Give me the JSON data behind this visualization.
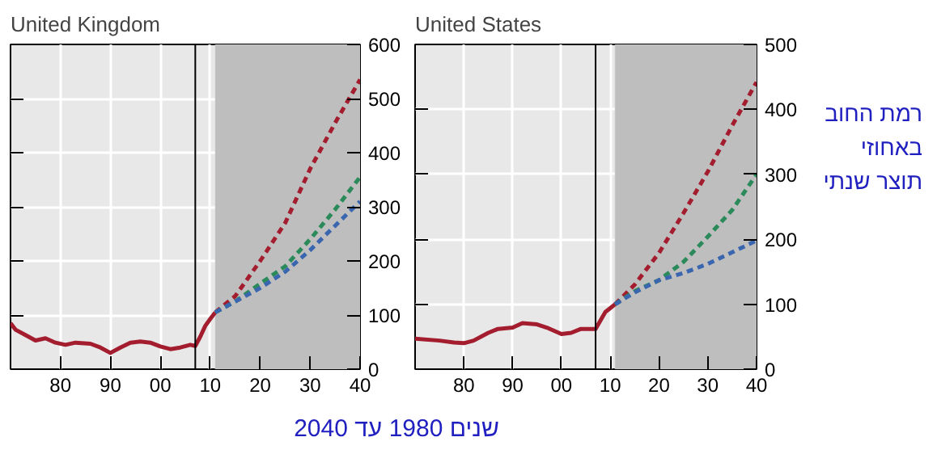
{
  "chart_data": [
    {
      "type": "line",
      "title": "United Kingdom",
      "xlabel": "שנים 1980 עד 2040",
      "xlim": [
        1970,
        2040
      ],
      "xticks": [
        {
          "value": 1980,
          "label": "80"
        },
        {
          "value": 1990,
          "label": "90"
        },
        {
          "value": 2000,
          "label": "00"
        },
        {
          "value": 2010,
          "label": "10"
        },
        {
          "value": 2020,
          "label": "20"
        },
        {
          "value": 2030,
          "label": "30"
        },
        {
          "value": 2040,
          "label": "40"
        }
      ],
      "ylim": [
        0,
        600
      ],
      "yticks": [
        0,
        100,
        200,
        300,
        400,
        500,
        600
      ],
      "grid": true,
      "marker": "none",
      "ref_lines": [
        {
          "axis": "x",
          "value": 2007,
          "color": "#000000"
        }
      ],
      "bands": [
        {
          "axis": "x",
          "from": 2011,
          "to": 2040,
          "color": "#bebebe"
        }
      ],
      "series": [
        {
          "color": "#a31d2f",
          "line_style": "solid",
          "x": [
            1970,
            1971,
            1973,
            1975,
            1977,
            1979,
            1981,
            1983,
            1986,
            1988,
            1990,
            1992,
            1994,
            1996,
            1998,
            2000,
            2002,
            2004,
            2006,
            2007,
            2008,
            2009,
            2010,
            2011
          ],
          "values": [
            85,
            73,
            63,
            53,
            57,
            49,
            45,
            49,
            47,
            40,
            30,
            40,
            49,
            51,
            49,
            42,
            37,
            40,
            45,
            43,
            60,
            80,
            93,
            105
          ]
        },
        {
          "color": "#a31d2f",
          "line_style": "dashed",
          "x": [
            2011,
            2015,
            2020,
            2025,
            2030,
            2035,
            2040
          ],
          "values": [
            105,
            135,
            200,
            270,
            370,
            455,
            535
          ]
        },
        {
          "color": "#2a8a5a",
          "line_style": "dashed",
          "x": [
            2011,
            2015,
            2020,
            2025,
            2030,
            2035,
            2040
          ],
          "values": [
            105,
            125,
            158,
            190,
            240,
            295,
            355
          ]
        },
        {
          "color": "#3a66b0",
          "line_style": "dashed",
          "x": [
            2011,
            2015,
            2020,
            2025,
            2030,
            2035,
            2040
          ],
          "values": [
            105,
            125,
            150,
            180,
            220,
            265,
            310
          ]
        }
      ]
    },
    {
      "type": "line",
      "title": "United States",
      "ylabel": "רמת החוב באחוזי תוצר שנתי",
      "xlim": [
        1970,
        2040
      ],
      "xticks": [
        {
          "value": 1980,
          "label": "80"
        },
        {
          "value": 1990,
          "label": "90"
        },
        {
          "value": 2000,
          "label": "00"
        },
        {
          "value": 2010,
          "label": "10"
        },
        {
          "value": 2020,
          "label": "20"
        },
        {
          "value": 2030,
          "label": "30"
        },
        {
          "value": 2040,
          "label": "40"
        }
      ],
      "ylim": [
        0,
        500
      ],
      "yticks": [
        0,
        100,
        200,
        300,
        400,
        500
      ],
      "grid": true,
      "marker": "none",
      "ref_lines": [
        {
          "axis": "x",
          "value": 2007,
          "color": "#000000"
        }
      ],
      "bands": [
        {
          "axis": "x",
          "from": 2011,
          "to": 2040,
          "color": "#bebebe"
        }
      ],
      "series": [
        {
          "color": "#a31d2f",
          "line_style": "solid",
          "x": [
            1970,
            1975,
            1978,
            1980,
            1982,
            1985,
            1987,
            1990,
            1992,
            1995,
            1997,
            2000,
            2002,
            2004,
            2007,
            2008,
            2009,
            2010,
            2011
          ],
          "values": [
            47,
            44,
            41,
            40,
            44,
            56,
            62,
            64,
            71,
            69,
            64,
            54,
            56,
            62,
            62,
            75,
            88,
            94,
            100
          ]
        },
        {
          "color": "#a31d2f",
          "line_style": "dashed",
          "x": [
            2011,
            2015,
            2020,
            2025,
            2030,
            2035,
            2040
          ],
          "values": [
            100,
            130,
            179,
            240,
            304,
            375,
            442
          ]
        },
        {
          "color": "#2a8a5a",
          "line_style": "dashed",
          "x": [
            2011,
            2015,
            2020,
            2025,
            2030,
            2035,
            2040
          ],
          "values": [
            100,
            120,
            137,
            165,
            204,
            245,
            300
          ]
        },
        {
          "color": "#3a66b0",
          "line_style": "dashed",
          "x": [
            2011,
            2015,
            2020,
            2025,
            2030,
            2035,
            2040
          ],
          "values": [
            100,
            118,
            137,
            148,
            162,
            180,
            198
          ]
        }
      ]
    }
  ]
}
